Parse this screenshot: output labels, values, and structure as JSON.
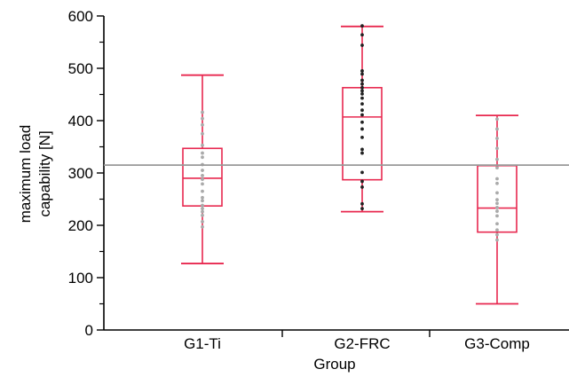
{
  "chart_data": {
    "type": "box",
    "title": "",
    "xlabel": "Group",
    "ylabel_lines": [
      "maximum load",
      "capability [N]"
    ],
    "ylim": [
      0,
      600
    ],
    "yticks": [
      0,
      100,
      200,
      300,
      400,
      500,
      600
    ],
    "yticks_labels": [
      "0",
      "100",
      "200",
      "300",
      "400",
      "500",
      "600"
    ],
    "reference_line": 315,
    "colors": {
      "box": "#e8284f",
      "reference_line": "#999999",
      "axis": "#000000",
      "points_light": "#aaaaaa",
      "points_dark": "#222222"
    },
    "categories": [
      "G1-Ti",
      "G2-FRC",
      "G3-Comp"
    ],
    "boxes": [
      {
        "name": "G1-Ti",
        "min": 127,
        "q1": 237,
        "median": 290,
        "q3": 347,
        "max": 487,
        "point_color": "light",
        "points": [
          197,
          207,
          219,
          226,
          232,
          238,
          247,
          253,
          265,
          279,
          288,
          295,
          305,
          316,
          330,
          338,
          353,
          375,
          392,
          404,
          416
        ]
      },
      {
        "name": "G2-FRC",
        "min": 226,
        "q1": 287,
        "median": 407,
        "q3": 463,
        "max": 580,
        "point_color": "dark",
        "points": [
          232,
          241,
          273,
          284,
          301,
          338,
          345,
          368,
          384,
          397,
          411,
          420,
          432,
          443,
          451,
          457,
          463,
          470,
          477,
          489,
          495,
          544,
          564,
          581
        ]
      },
      {
        "name": "G3-Comp",
        "min": 50,
        "q1": 187,
        "median": 233,
        "q3": 314,
        "max": 410,
        "point_color": "light",
        "points": [
          172,
          182,
          191,
          203,
          218,
          227,
          234,
          242,
          249,
          262,
          280,
          289,
          310,
          326,
          347,
          366,
          384,
          403
        ]
      }
    ]
  }
}
